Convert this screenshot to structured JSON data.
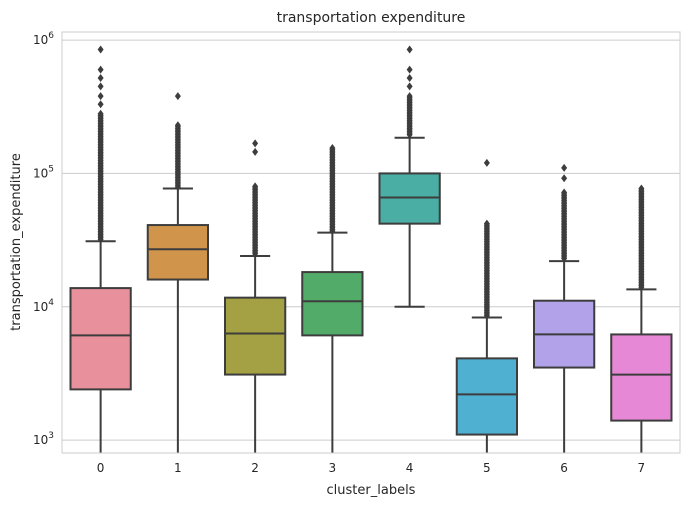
{
  "chart_data": {
    "type": "box",
    "title": "transportation expenditure",
    "xlabel": "cluster_labels",
    "ylabel": "transportation_expenditure",
    "yscale": "log",
    "ylim": [
      800,
      1150000
    ],
    "grid": "y-major",
    "y_ticks": [
      {
        "value": 1000,
        "base": "10",
        "exp": "3"
      },
      {
        "value": 10000,
        "base": "10",
        "exp": "4"
      },
      {
        "value": 100000,
        "base": "10",
        "exp": "5"
      },
      {
        "value": 1000000,
        "base": "10",
        "exp": "6"
      }
    ],
    "categories": [
      "0",
      "1",
      "2",
      "3",
      "4",
      "5",
      "6",
      "7"
    ],
    "boxes": [
      {
        "label": "0",
        "whisker_low": 800,
        "q1": 2400,
        "median": 6100,
        "q3": 13800,
        "whisker_high": 31000,
        "outliers_min": 32000,
        "outliers_dense_max": 280000,
        "outliers_sparse": [
          330000,
          380000,
          450000,
          520000,
          600000,
          850000
        ],
        "color": "#e8909c"
      },
      {
        "label": "1",
        "whisker_low": 800,
        "q1": 16000,
        "median": 27000,
        "q3": 41000,
        "whisker_high": 77000,
        "outliers_min": 79000,
        "outliers_dense_max": 230000,
        "outliers_sparse": [
          380000
        ],
        "color": "#d1944b"
      },
      {
        "label": "2",
        "whisker_low": 800,
        "q1": 3100,
        "median": 6300,
        "q3": 11700,
        "whisker_high": 24000,
        "outliers_min": 25000,
        "outliers_dense_max": 80000,
        "outliers_sparse": [
          145000,
          168000
        ],
        "color": "#a4a144"
      },
      {
        "label": "3",
        "whisker_low": 800,
        "q1": 6100,
        "median": 11000,
        "q3": 18200,
        "whisker_high": 36000,
        "outliers_min": 37000,
        "outliers_dense_max": 155000,
        "outliers_sparse": [],
        "color": "#52ab68"
      },
      {
        "label": "4",
        "whisker_low": 10000,
        "q1": 42000,
        "median": 66000,
        "q3": 100000,
        "whisker_high": 185000,
        "outliers_min": 195000,
        "outliers_dense_max": 380000,
        "outliers_sparse": [
          450000,
          520000,
          600000,
          850000
        ],
        "color": "#4aaea4"
      },
      {
        "label": "5",
        "whisker_low": 800,
        "q1": 1100,
        "median": 2200,
        "q3": 4100,
        "whisker_high": 8300,
        "outliers_min": 8600,
        "outliers_dense_max": 42000,
        "outliers_sparse": [
          120000
        ],
        "color": "#4fb0d2"
      },
      {
        "label": "6",
        "whisker_low": 800,
        "q1": 3500,
        "median": 6200,
        "q3": 11100,
        "whisker_high": 22000,
        "outliers_min": 23000,
        "outliers_dense_max": 72000,
        "outliers_sparse": [
          92000,
          110000
        ],
        "color": "#b2a2ea"
      },
      {
        "label": "7",
        "whisker_low": 800,
        "q1": 1400,
        "median": 3100,
        "q3": 6200,
        "whisker_high": 13500,
        "outliers_min": 14000,
        "outliers_dense_max": 77000,
        "outliers_sparse": [],
        "color": "#e688d6"
      }
    ]
  }
}
